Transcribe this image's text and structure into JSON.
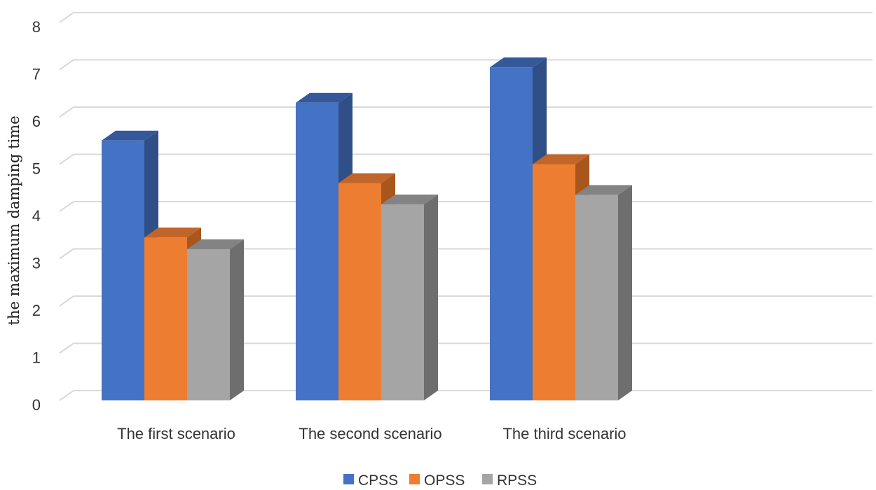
{
  "chart_data": {
    "type": "bar",
    "title": "",
    "xlabel": "",
    "ylabel": "the maximum damping time",
    "ylim": [
      0,
      8
    ],
    "yticks": [
      "0",
      "1",
      "2",
      "3",
      "4",
      "5",
      "6",
      "7",
      "8"
    ],
    "grid": true,
    "legend_position": "bottom",
    "style": "3d-clustered-column",
    "categories": [
      "The first scenario",
      "The second scenario",
      "The third scenario"
    ],
    "series": [
      {
        "name": "CPSS",
        "values": [
          5.5,
          6.3,
          7.05
        ],
        "color": "#4472C4",
        "side_color": "#2F4F86",
        "top_color": "#35589A"
      },
      {
        "name": "OPSS",
        "values": [
          3.45,
          4.6,
          5.0
        ],
        "color": "#ED7D31",
        "side_color": "#A8561C",
        "top_color": "#C1652A"
      },
      {
        "name": "RPSS",
        "values": [
          3.2,
          4.15,
          4.35
        ],
        "color": "#A5A5A5",
        "side_color": "#6E6E6E",
        "top_color": "#838383"
      }
    ]
  }
}
